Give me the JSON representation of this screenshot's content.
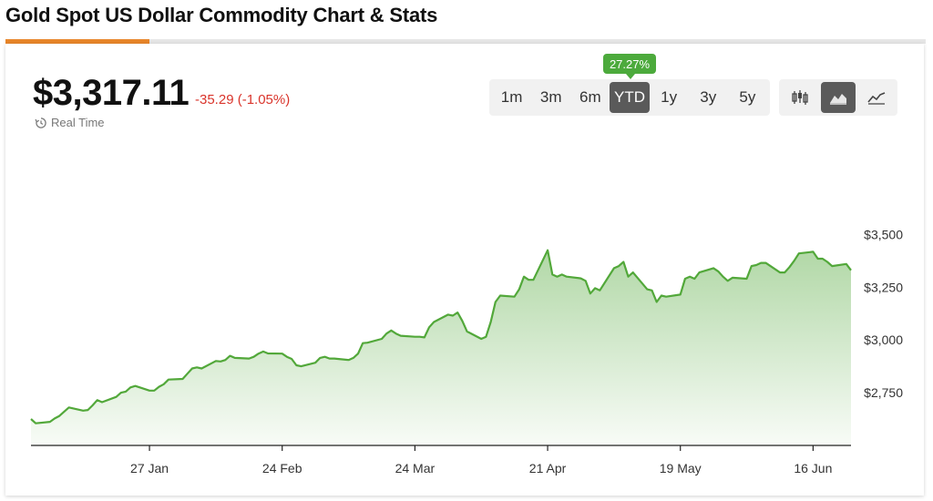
{
  "page": {
    "title": "Gold Spot US Dollar Commodity Chart & Stats"
  },
  "quote": {
    "price": "$3,317.11",
    "change": "-35.29 (-1.05%)",
    "realtime_label": "Real Time"
  },
  "ranges": {
    "items": [
      "1m",
      "3m",
      "6m",
      "YTD",
      "1y",
      "3y",
      "5y"
    ],
    "active": "YTD",
    "active_badge": "27.27%"
  },
  "chart_types": {
    "items": [
      {
        "icon": "candlestick-icon",
        "active": false
      },
      {
        "icon": "area-chart-icon",
        "active": true
      },
      {
        "icon": "line-chart-icon",
        "active": false
      }
    ]
  },
  "colors": {
    "accent": "#e8862a",
    "line": "#52a83a",
    "up_badge": "#4caa3c",
    "down": "#d9342b"
  },
  "chart_data": {
    "type": "area",
    "title": "",
    "xlabel": "",
    "ylabel": "",
    "ylim": [
      2500,
      3575
    ],
    "y_ticks": [
      2750,
      3000,
      3250,
      3500
    ],
    "y_tick_labels": [
      "$2,750",
      "$3,000",
      "$3,250",
      "$3,500"
    ],
    "x_ticks": [
      "2025-01-27",
      "2025-02-24",
      "2025-03-24",
      "2025-04-21",
      "2025-05-19",
      "2025-06-16"
    ],
    "x_tick_labels": [
      "27 Jan",
      "24 Feb",
      "24 Mar",
      "21 Apr",
      "19 May",
      "16 Jun"
    ],
    "grid": false,
    "x": [
      "2025-01-02",
      "2025-01-03",
      "2025-01-06",
      "2025-01-07",
      "2025-01-08",
      "2025-01-09",
      "2025-01-10",
      "2025-01-13",
      "2025-01-14",
      "2025-01-15",
      "2025-01-16",
      "2025-01-17",
      "2025-01-20",
      "2025-01-21",
      "2025-01-22",
      "2025-01-23",
      "2025-01-24",
      "2025-01-27",
      "2025-01-28",
      "2025-01-29",
      "2025-01-30",
      "2025-01-31",
      "2025-02-03",
      "2025-02-04",
      "2025-02-05",
      "2025-02-06",
      "2025-02-07",
      "2025-02-10",
      "2025-02-11",
      "2025-02-12",
      "2025-02-13",
      "2025-02-14",
      "2025-02-17",
      "2025-02-18",
      "2025-02-19",
      "2025-02-20",
      "2025-02-21",
      "2025-02-24",
      "2025-02-25",
      "2025-02-26",
      "2025-02-27",
      "2025-02-28",
      "2025-03-03",
      "2025-03-04",
      "2025-03-05",
      "2025-03-06",
      "2025-03-07",
      "2025-03-10",
      "2025-03-11",
      "2025-03-12",
      "2025-03-13",
      "2025-03-14",
      "2025-03-17",
      "2025-03-18",
      "2025-03-19",
      "2025-03-20",
      "2025-03-21",
      "2025-03-24",
      "2025-03-25",
      "2025-03-26",
      "2025-03-27",
      "2025-03-28",
      "2025-03-31",
      "2025-04-01",
      "2025-04-02",
      "2025-04-03",
      "2025-04-04",
      "2025-04-07",
      "2025-04-08",
      "2025-04-09",
      "2025-04-10",
      "2025-04-11",
      "2025-04-14",
      "2025-04-15",
      "2025-04-16",
      "2025-04-17",
      "2025-04-18",
      "2025-04-21",
      "2025-04-22",
      "2025-04-23",
      "2025-04-24",
      "2025-04-25",
      "2025-04-28",
      "2025-04-29",
      "2025-04-30",
      "2025-05-01",
      "2025-05-02",
      "2025-05-05",
      "2025-05-06",
      "2025-05-07",
      "2025-05-08",
      "2025-05-09",
      "2025-05-12",
      "2025-05-13",
      "2025-05-14",
      "2025-05-15",
      "2025-05-16",
      "2025-05-19",
      "2025-05-20",
      "2025-05-21",
      "2025-05-22",
      "2025-05-23",
      "2025-05-26",
      "2025-05-27",
      "2025-05-28",
      "2025-05-29",
      "2025-05-30",
      "2025-06-02",
      "2025-06-03",
      "2025-06-04",
      "2025-06-05",
      "2025-06-06",
      "2025-06-09",
      "2025-06-10",
      "2025-06-11",
      "2025-06-12",
      "2025-06-13",
      "2025-06-16",
      "2025-06-17",
      "2025-06-18",
      "2025-06-19",
      "2025-06-20",
      "2025-06-23",
      "2025-06-24"
    ],
    "series": [
      {
        "values": [
          2625,
          2605,
          2612,
          2628,
          2640,
          2660,
          2680,
          2665,
          2668,
          2690,
          2715,
          2705,
          2730,
          2750,
          2755,
          2775,
          2782,
          2760,
          2760,
          2778,
          2790,
          2812,
          2815,
          2840,
          2865,
          2870,
          2865,
          2900,
          2898,
          2905,
          2925,
          2915,
          2912,
          2920,
          2935,
          2945,
          2936,
          2935,
          2920,
          2910,
          2880,
          2875,
          2892,
          2915,
          2920,
          2912,
          2912,
          2905,
          2915,
          2935,
          2985,
          2987,
          3005,
          3030,
          3045,
          3030,
          3020,
          3015,
          3015,
          3012,
          3060,
          3085,
          3120,
          3115,
          3130,
          3090,
          3040,
          3005,
          3015,
          3085,
          3180,
          3210,
          3205,
          3240,
          3300,
          3285,
          3285,
          3425,
          3310,
          3300,
          3310,
          3300,
          3292,
          3280,
          3220,
          3245,
          3235,
          3340,
          3350,
          3370,
          3300,
          3320,
          3240,
          3235,
          3180,
          3210,
          3205,
          3215,
          3290,
          3300,
          3290,
          3320,
          3340,
          3325,
          3300,
          3280,
          3295,
          3290,
          3350,
          3355,
          3365,
          3365,
          3320,
          3320,
          3345,
          3375,
          3410,
          3418,
          3385,
          3385,
          3370,
          3350,
          3360,
          3330
        ]
      }
    ]
  }
}
